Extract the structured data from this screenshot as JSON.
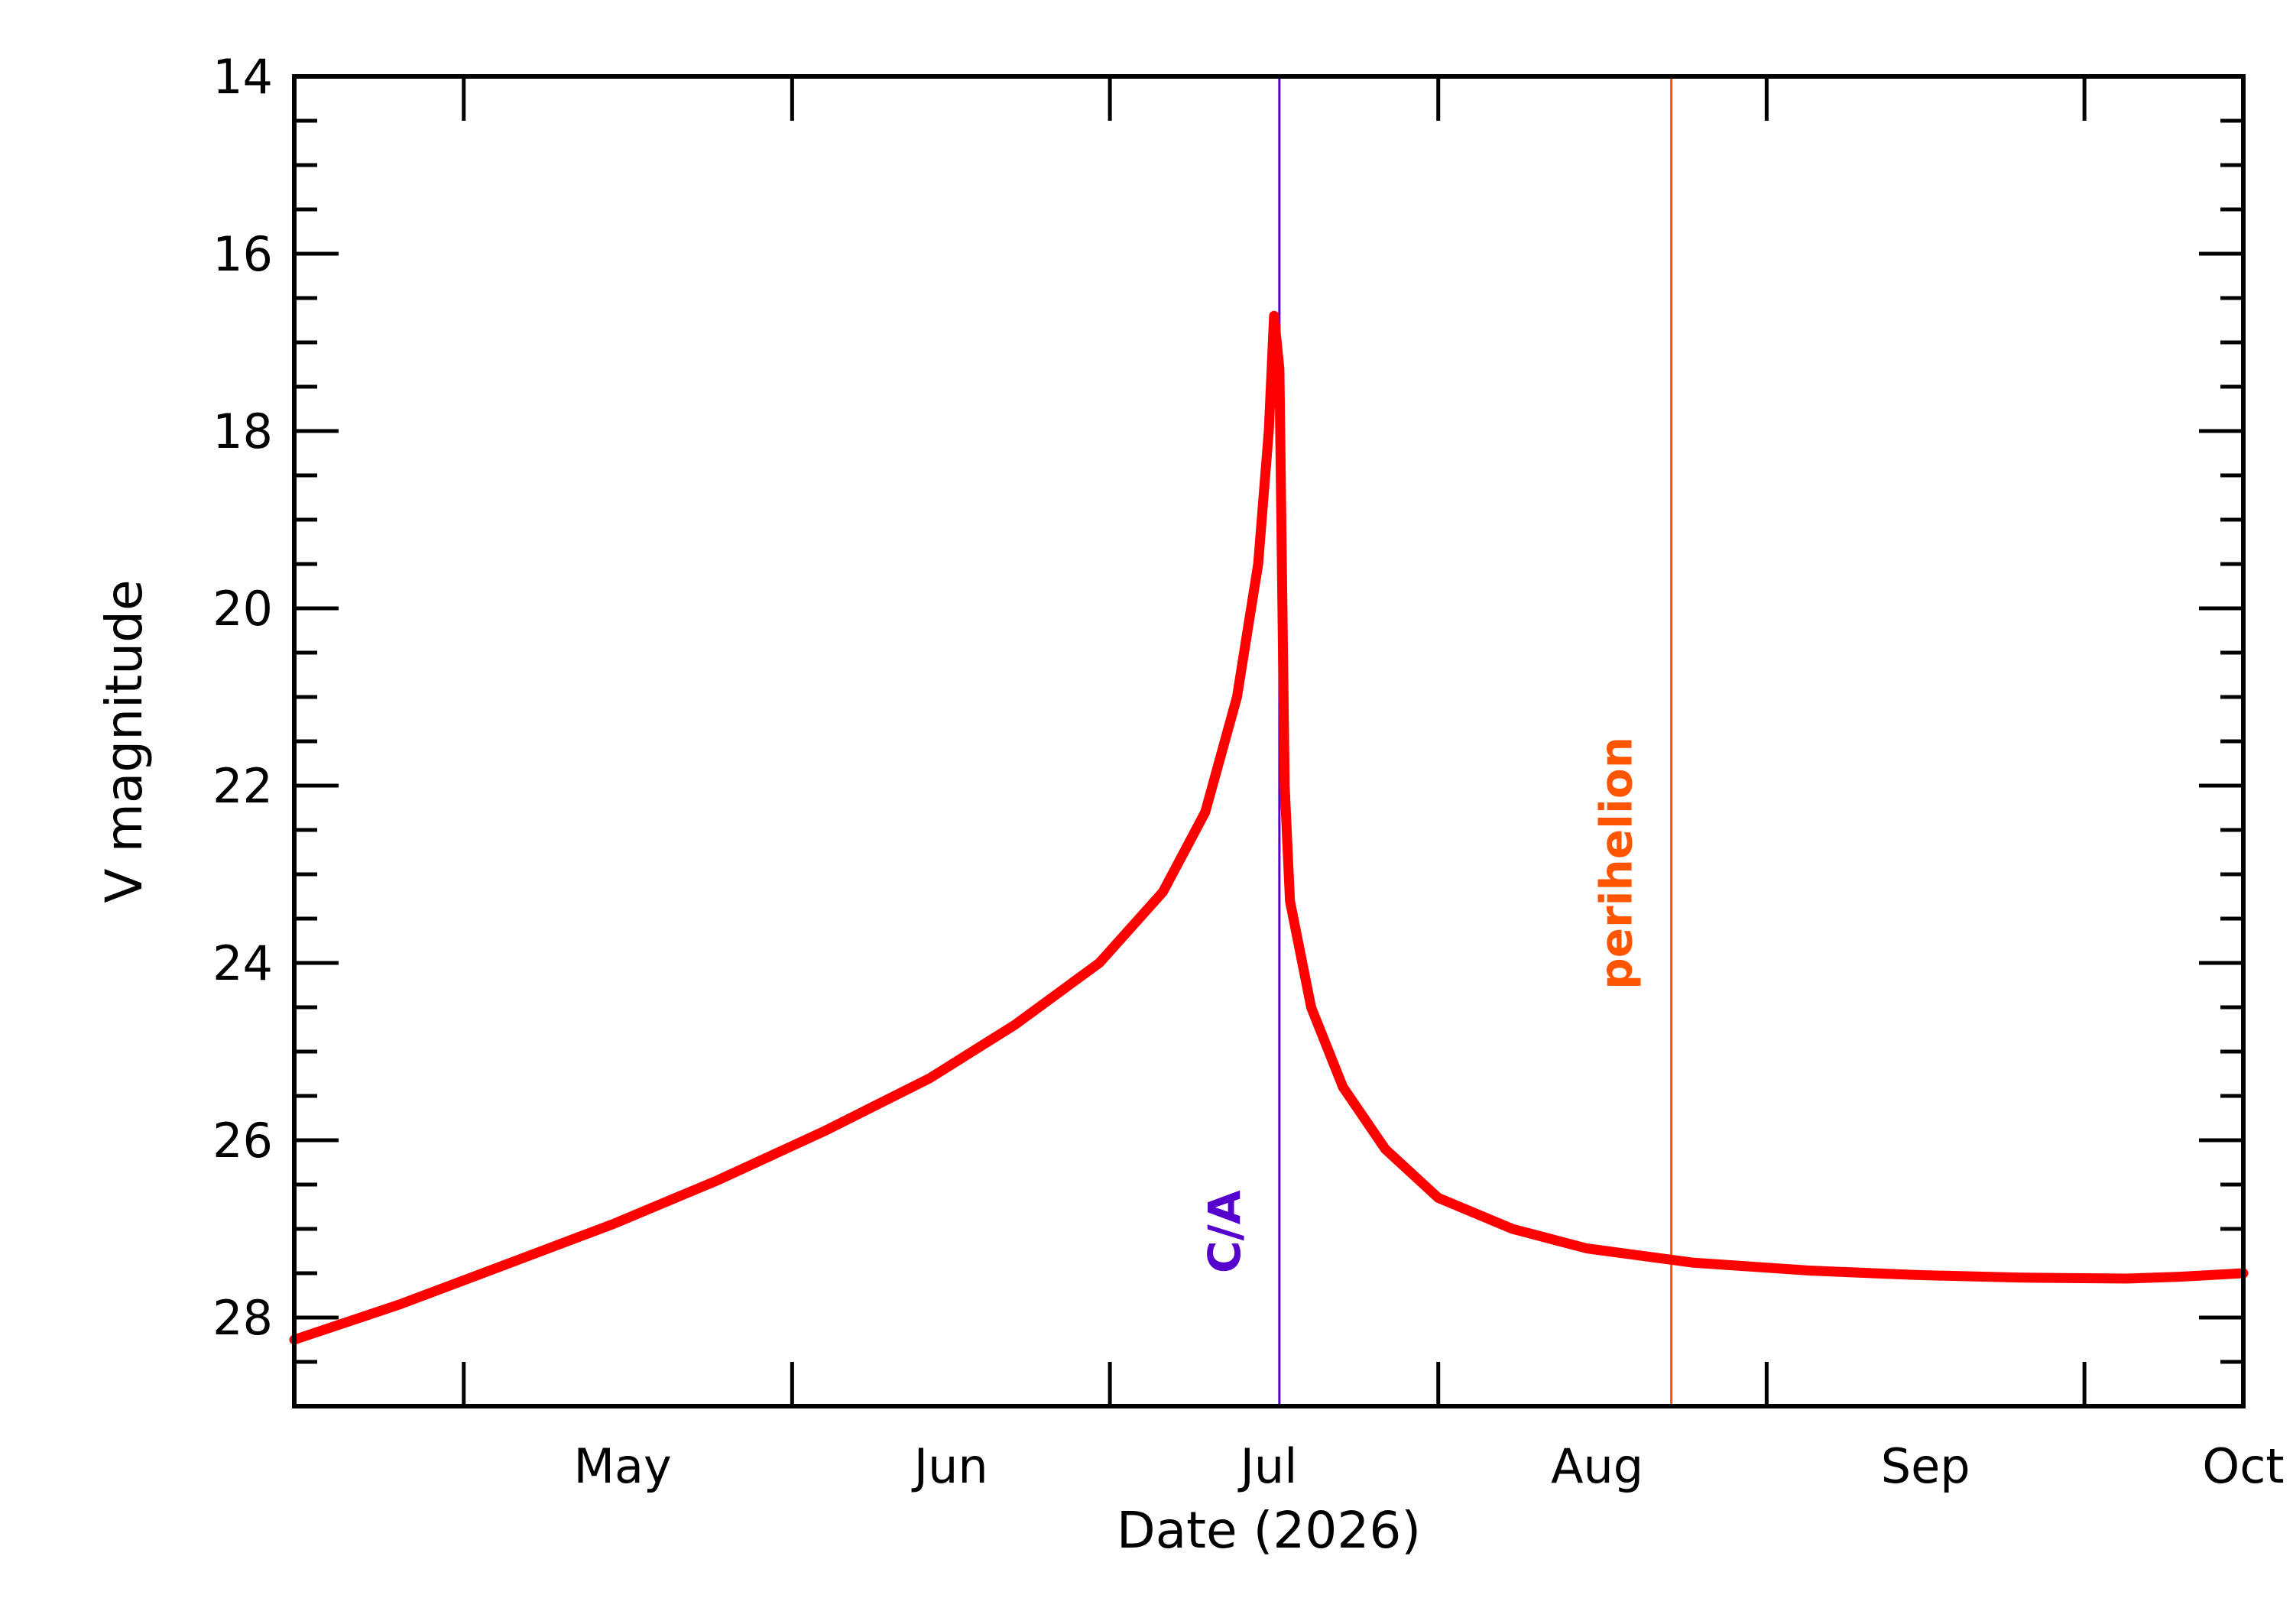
{
  "chart_data": {
    "type": "line",
    "xlabel": "Date (2026)",
    "ylabel": "V magnitude",
    "y_axis_inverted": true,
    "ylim": [
      29,
      14
    ],
    "xlim": [
      "2026-04-15",
      "2026-10-16"
    ],
    "y_major_ticks": [
      14,
      16,
      18,
      20,
      22,
      24,
      26,
      28
    ],
    "y_tick_labels": [
      "14",
      "16",
      "18",
      "20",
      "22",
      "24",
      "26",
      "28"
    ],
    "y_minor_step": 0.5,
    "x_tick_dates": [
      "2026-05-01",
      "2026-06-01",
      "2026-07-01",
      "2026-08-01",
      "2026-09-01",
      "2026-10-01"
    ],
    "x_labels": [
      {
        "label": "May",
        "date": "2026-05-16"
      },
      {
        "label": "Jun",
        "date": "2026-06-16"
      },
      {
        "label": "Jul",
        "date": "2026-07-16"
      },
      {
        "label": "Aug",
        "date": "2026-08-16"
      },
      {
        "label": "Sep",
        "date": "2026-09-16"
      },
      {
        "label": "Oct",
        "date": "2026-10-16"
      }
    ],
    "grid": false,
    "series": [
      {
        "color": "#ff0000",
        "points": [
          {
            "x": "2026-04-15",
            "y": 28.25
          },
          {
            "x": "2026-04-25",
            "y": 27.85
          },
          {
            "x": "2026-05-05",
            "y": 27.4
          },
          {
            "x": "2026-05-15",
            "y": 26.95
          },
          {
            "x": "2026-05-25",
            "y": 26.45
          },
          {
            "x": "2026-06-04",
            "y": 25.9
          },
          {
            "x": "2026-06-14",
            "y": 25.3
          },
          {
            "x": "2026-06-22",
            "y": 24.7
          },
          {
            "x": "2026-06-30",
            "y": 24.0
          },
          {
            "x": "2026-07-06",
            "y": 23.2
          },
          {
            "x": "2026-07-10",
            "y": 22.3
          },
          {
            "x": "2026-07-13",
            "y": 21.0
          },
          {
            "x": "2026-07-15",
            "y": 19.5
          },
          {
            "x": "2026-07-16",
            "y": 18.0
          },
          {
            "x": "2026-07-16T12:00",
            "y": 16.7
          },
          {
            "x": "2026-07-17",
            "y": 17.3
          },
          {
            "x": "2026-07-17T12:00",
            "y": 22.0
          },
          {
            "x": "2026-07-18",
            "y": 23.3
          },
          {
            "x": "2026-07-20",
            "y": 24.5
          },
          {
            "x": "2026-07-23",
            "y": 25.4
          },
          {
            "x": "2026-07-27",
            "y": 26.1
          },
          {
            "x": "2026-08-01",
            "y": 26.65
          },
          {
            "x": "2026-08-08",
            "y": 27.0
          },
          {
            "x": "2026-08-15",
            "y": 27.22
          },
          {
            "x": "2026-08-25",
            "y": 27.38
          },
          {
            "x": "2026-09-05",
            "y": 27.47
          },
          {
            "x": "2026-09-15",
            "y": 27.52
          },
          {
            "x": "2026-09-25",
            "y": 27.55
          },
          {
            "x": "2026-10-05",
            "y": 27.56
          },
          {
            "x": "2026-10-10",
            "y": 27.54
          },
          {
            "x": "2026-10-16",
            "y": 27.5
          }
        ]
      }
    ],
    "markers": [
      {
        "label": "C/A",
        "date": "2026-07-17",
        "color": "#5500cc"
      },
      {
        "label": "perihelion",
        "date": "2026-08-23",
        "color": "#ff5500"
      }
    ]
  }
}
